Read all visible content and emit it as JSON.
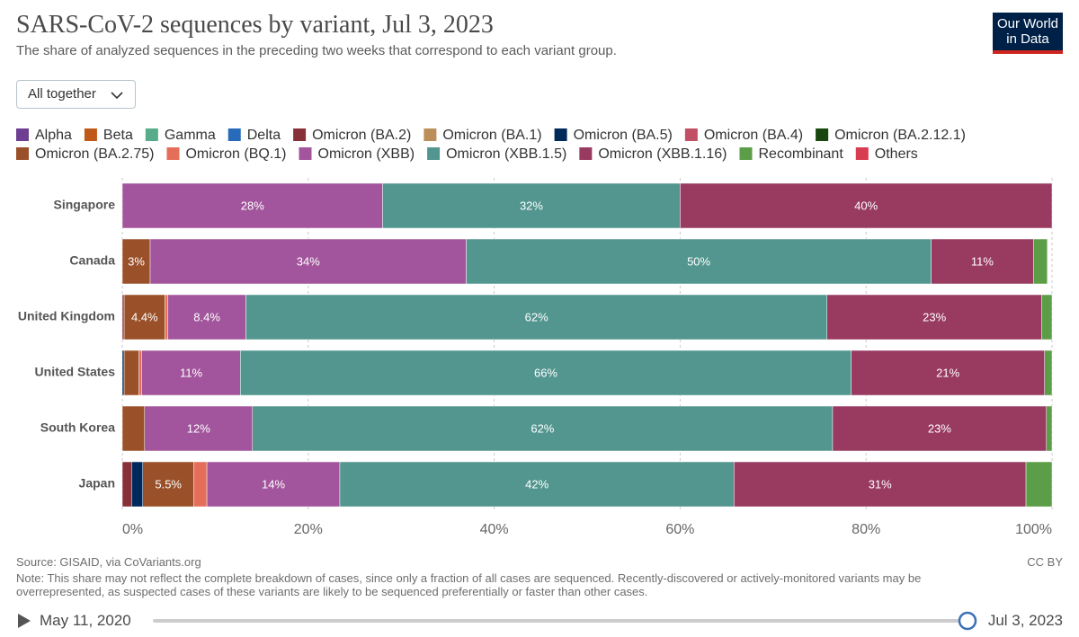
{
  "chart_data": {
    "type": "stacked-bar-horizontal",
    "title": "SARS-CoV-2 sequences by variant, Jul 3, 2023",
    "subtitle": "The share of analyzed sequences in the preceding two weeks that correspond to each variant group.",
    "categories": [
      "Singapore",
      "Canada",
      "United Kingdom",
      "United States",
      "South Korea",
      "Japan"
    ],
    "series": [
      {
        "name": "Alpha",
        "color": "#6d3e91",
        "values": [
          null,
          null,
          null,
          null,
          null,
          null
        ]
      },
      {
        "name": "Beta",
        "color": "#c05917",
        "values": [
          null,
          null,
          null,
          null,
          null,
          null
        ]
      },
      {
        "name": "Gamma",
        "color": "#58ac8c",
        "values": [
          null,
          null,
          null,
          null,
          null,
          null
        ]
      },
      {
        "name": "Delta",
        "color": "#286bbb",
        "values": [
          null,
          null,
          null,
          null,
          null,
          null
        ]
      },
      {
        "name": "Omicron (BA.2)",
        "color": "#883039",
        "values": [
          null,
          null,
          0.2,
          null,
          null,
          1.0
        ]
      },
      {
        "name": "Omicron (BA.1)",
        "color": "#bc8e5a",
        "values": [
          null,
          null,
          null,
          null,
          null,
          null
        ]
      },
      {
        "name": "Omicron (BA.5)",
        "color": "#00295b",
        "values": [
          null,
          null,
          null,
          0.2,
          null,
          1.2
        ]
      },
      {
        "name": "Omicron (BA.4)",
        "color": "#c15065",
        "values": [
          null,
          null,
          null,
          null,
          null,
          null
        ]
      },
      {
        "name": "Omicron (BA.2.12.1)",
        "color": "#18470f",
        "values": [
          null,
          null,
          null,
          null,
          null,
          null
        ]
      },
      {
        "name": "Omicron (BA.2.75)",
        "color": "#9a5129",
        "values": [
          null,
          3,
          4.4,
          1.6,
          2.4,
          5.5
        ],
        "value_labels": [
          null,
          "3%",
          "4.4%",
          null,
          null,
          "5.5%"
        ]
      },
      {
        "name": "Omicron (BQ.1)",
        "color": "#e56e5a",
        "values": [
          null,
          null,
          0.3,
          0.3,
          null,
          1.4
        ]
      },
      {
        "name": "Omicron (XBB)",
        "color": "#a2559c",
        "values": [
          28,
          34,
          8.4,
          10.6,
          11.6,
          14.3
        ],
        "value_labels": [
          "28%",
          "34%",
          "8.4%",
          "11%",
          "12%",
          "14%"
        ]
      },
      {
        "name": "Omicron (XBB.1.5)",
        "color": "#52968f",
        "values": [
          32,
          50,
          62.5,
          65.7,
          62.4,
          42.4
        ],
        "value_labels": [
          "32%",
          "50%",
          "62%",
          "66%",
          "62%",
          "42%"
        ]
      },
      {
        "name": "Omicron (XBB.1.16)",
        "color": "#993a60",
        "values": [
          40,
          11,
          23.1,
          20.8,
          23,
          31.4
        ],
        "value_labels": [
          "40%",
          "11%",
          "23%",
          "21%",
          "23%",
          "31%"
        ]
      },
      {
        "name": "Recombinant",
        "color": "#5c9e47",
        "values": [
          null,
          1.5,
          1.1,
          0.8,
          0.6,
          2.8
        ]
      },
      {
        "name": "Others",
        "color": "#d73c50",
        "values": [
          null,
          null,
          null,
          null,
          null,
          null
        ]
      }
    ],
    "xlim": [
      0,
      100
    ],
    "xticks": [
      {
        "value": 0,
        "label": "0%"
      },
      {
        "value": 20,
        "label": "20%"
      },
      {
        "value": 40,
        "label": "40%"
      },
      {
        "value": 60,
        "label": "60%"
      },
      {
        "value": 80,
        "label": "80%"
      },
      {
        "value": 100,
        "label": "100%"
      }
    ],
    "grid": true,
    "source": "Source: GISAID, via CoVariants.org",
    "note": "Note: This share may not reflect the complete breakdown of cases, since only a fraction of all cases are sequenced. Recently-discovered or actively-monitored variants may be overrepresented, as suspected cases of these variants are likely to be sequenced preferentially or faster than other cases.",
    "license": "CC BY"
  },
  "ui": {
    "logo": [
      "Our World",
      "in Data"
    ],
    "dropdown": "All together",
    "timeline_start": "May 11, 2020",
    "timeline_end": "Jul 3, 2023"
  }
}
